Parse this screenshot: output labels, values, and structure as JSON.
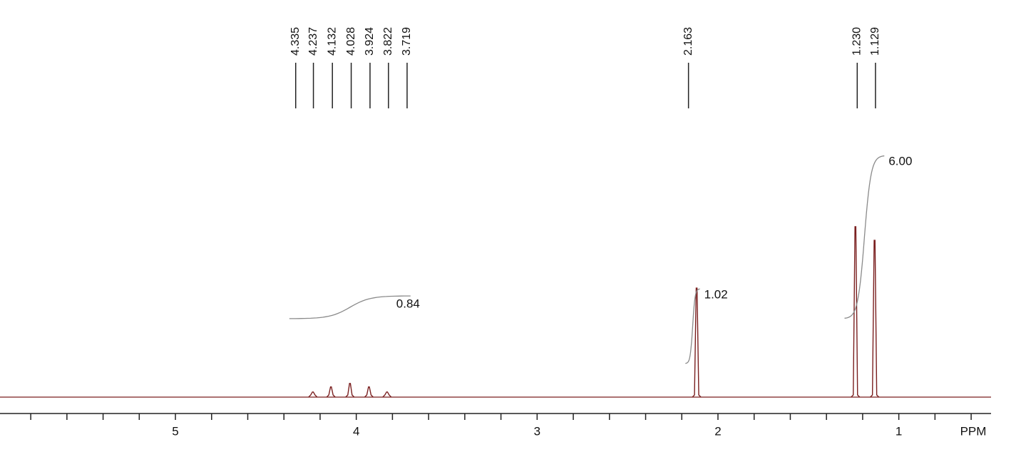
{
  "chart_data": {
    "type": "nmr",
    "x_label": "PPM",
    "xlim": [
      5.97,
      0.49
    ],
    "xticks": [
      5,
      4,
      3,
      2,
      1
    ],
    "minor_xticks": [
      5.8,
      5.6,
      5.4,
      5.2,
      4.8,
      4.6,
      4.4,
      4.2,
      3.8,
      3.6,
      3.4,
      3.2,
      2.8,
      2.6,
      2.4,
      2.2,
      1.8,
      1.6,
      1.4,
      1.2,
      0.8,
      0.6
    ],
    "ylim": [
      0,
      100
    ],
    "color": "#7a1f1f",
    "integral_color": "#8a8a8a",
    "peak_labels": [
      4.335,
      4.237,
      4.132,
      4.028,
      3.924,
      3.822,
      3.719,
      2.163,
      {
        "value": 1.23,
        "label": "1.230"
      },
      1.129
    ],
    "signals": {
      "x": [
        4.24,
        4.14,
        4.035,
        3.93,
        3.83,
        2.118,
        1.24,
        1.134
      ],
      "values": [
        3,
        6,
        8,
        6,
        3,
        64,
        100,
        92
      ]
    },
    "integrals": {
      "from": [
        4.37,
        2.18,
        1.3
      ],
      "to": [
        3.7,
        2.1,
        1.08
      ],
      "values": [
        0.84,
        1.02,
        6
      ],
      "value_labels": [
        "0.84",
        "1.02",
        "6.00"
      ]
    }
  }
}
